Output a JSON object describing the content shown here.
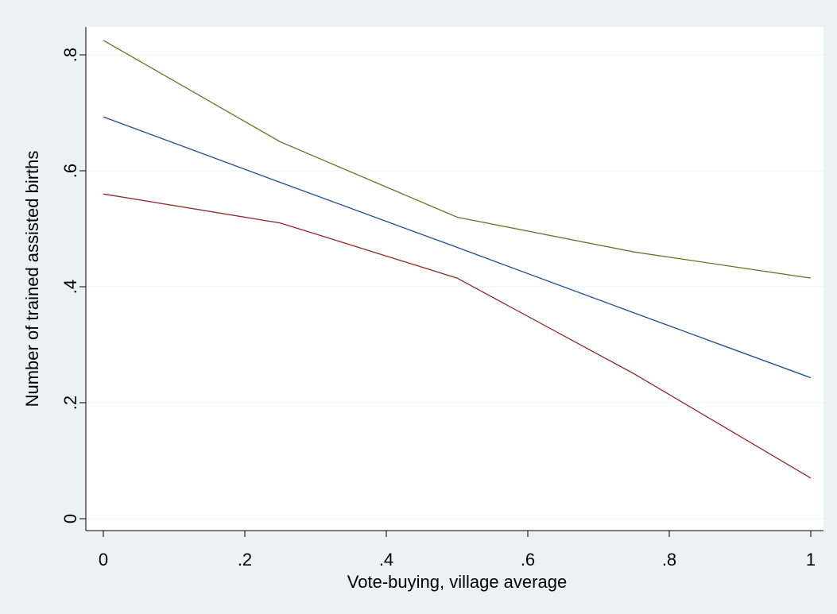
{
  "chart_data": {
    "type": "line",
    "title": "",
    "xlabel": "Vote-buying, village average",
    "ylabel": "Number of trained assisted births",
    "xlim": [
      0,
      1
    ],
    "ylim": [
      0,
      0.8
    ],
    "x_ticks": [
      0,
      0.2,
      0.4,
      0.6,
      0.8,
      1
    ],
    "x_tick_labels": [
      "0",
      ".2",
      ".4",
      ".6",
      ".8",
      "1"
    ],
    "y_ticks": [
      0,
      0.2,
      0.4,
      0.6,
      0.8
    ],
    "y_tick_labels": [
      "0",
      ".2",
      ".4",
      ".6",
      ".8"
    ],
    "grid": "horizontal",
    "legend": "none",
    "series": [
      {
        "color": "#5c7a2e",
        "x": [
          0,
          0.25,
          0.5,
          0.75,
          1
        ],
        "y": [
          0.825,
          0.65,
          0.52,
          0.46,
          0.415
        ]
      },
      {
        "color": "#1f4e8c",
        "x": [
          0,
          0.25,
          0.5,
          0.75,
          1
        ],
        "y": [
          0.693,
          0.58,
          0.468,
          0.355,
          0.243
        ]
      },
      {
        "color": "#8b2a2a",
        "x": [
          0,
          0.25,
          0.5,
          0.75,
          1
        ],
        "y": [
          0.56,
          0.51,
          0.415,
          0.25,
          0.07
        ]
      }
    ]
  }
}
